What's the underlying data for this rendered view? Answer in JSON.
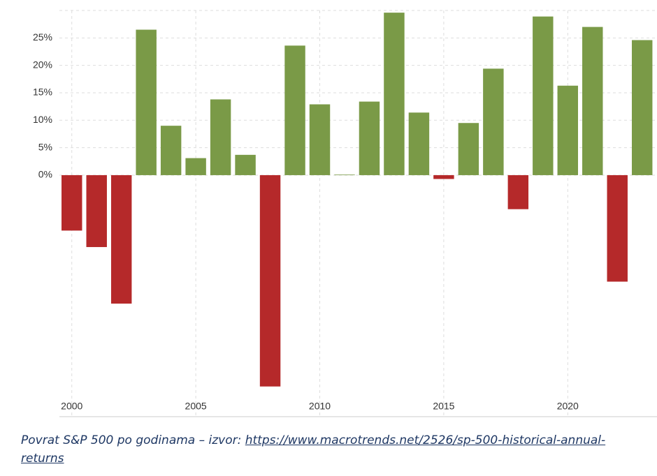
{
  "chart_data": {
    "type": "bar",
    "x": [
      2000,
      2001,
      2002,
      2003,
      2004,
      2005,
      2006,
      2007,
      2008,
      2009,
      2010,
      2011,
      2012,
      2013,
      2014,
      2015,
      2016,
      2017,
      2018,
      2019,
      2020,
      2021,
      2022,
      2023
    ],
    "values": [
      -10.1,
      -13.1,
      -23.4,
      26.5,
      9.0,
      3.1,
      13.8,
      3.7,
      -38.5,
      23.6,
      12.9,
      0.1,
      13.4,
      29.6,
      11.4,
      -0.7,
      9.5,
      19.4,
      -6.2,
      28.9,
      16.3,
      27.0,
      -19.4,
      24.6
    ],
    "positive_color": "#7a9a47",
    "negative_color": "#b5292a",
    "xlim": [
      1999.5,
      2023.6
    ],
    "xticks": [
      2000,
      2005,
      2010,
      2015,
      2020
    ],
    "ylim": [
      -44,
      30
    ],
    "yticks": [
      {
        "value": 0,
        "label": "0%"
      },
      {
        "value": 5,
        "label": "5%"
      },
      {
        "value": 10,
        "label": "10%"
      },
      {
        "value": 15,
        "label": "15%"
      },
      {
        "value": 20,
        "label": "20%"
      },
      {
        "value": 25,
        "label": "25%"
      }
    ],
    "grid": true
  },
  "caption": {
    "text": "Povrat S&P 500 po godinama – izvor: ",
    "link": "https://www.macrotrends.net/2526/sp-500-historical-annual-returns"
  }
}
